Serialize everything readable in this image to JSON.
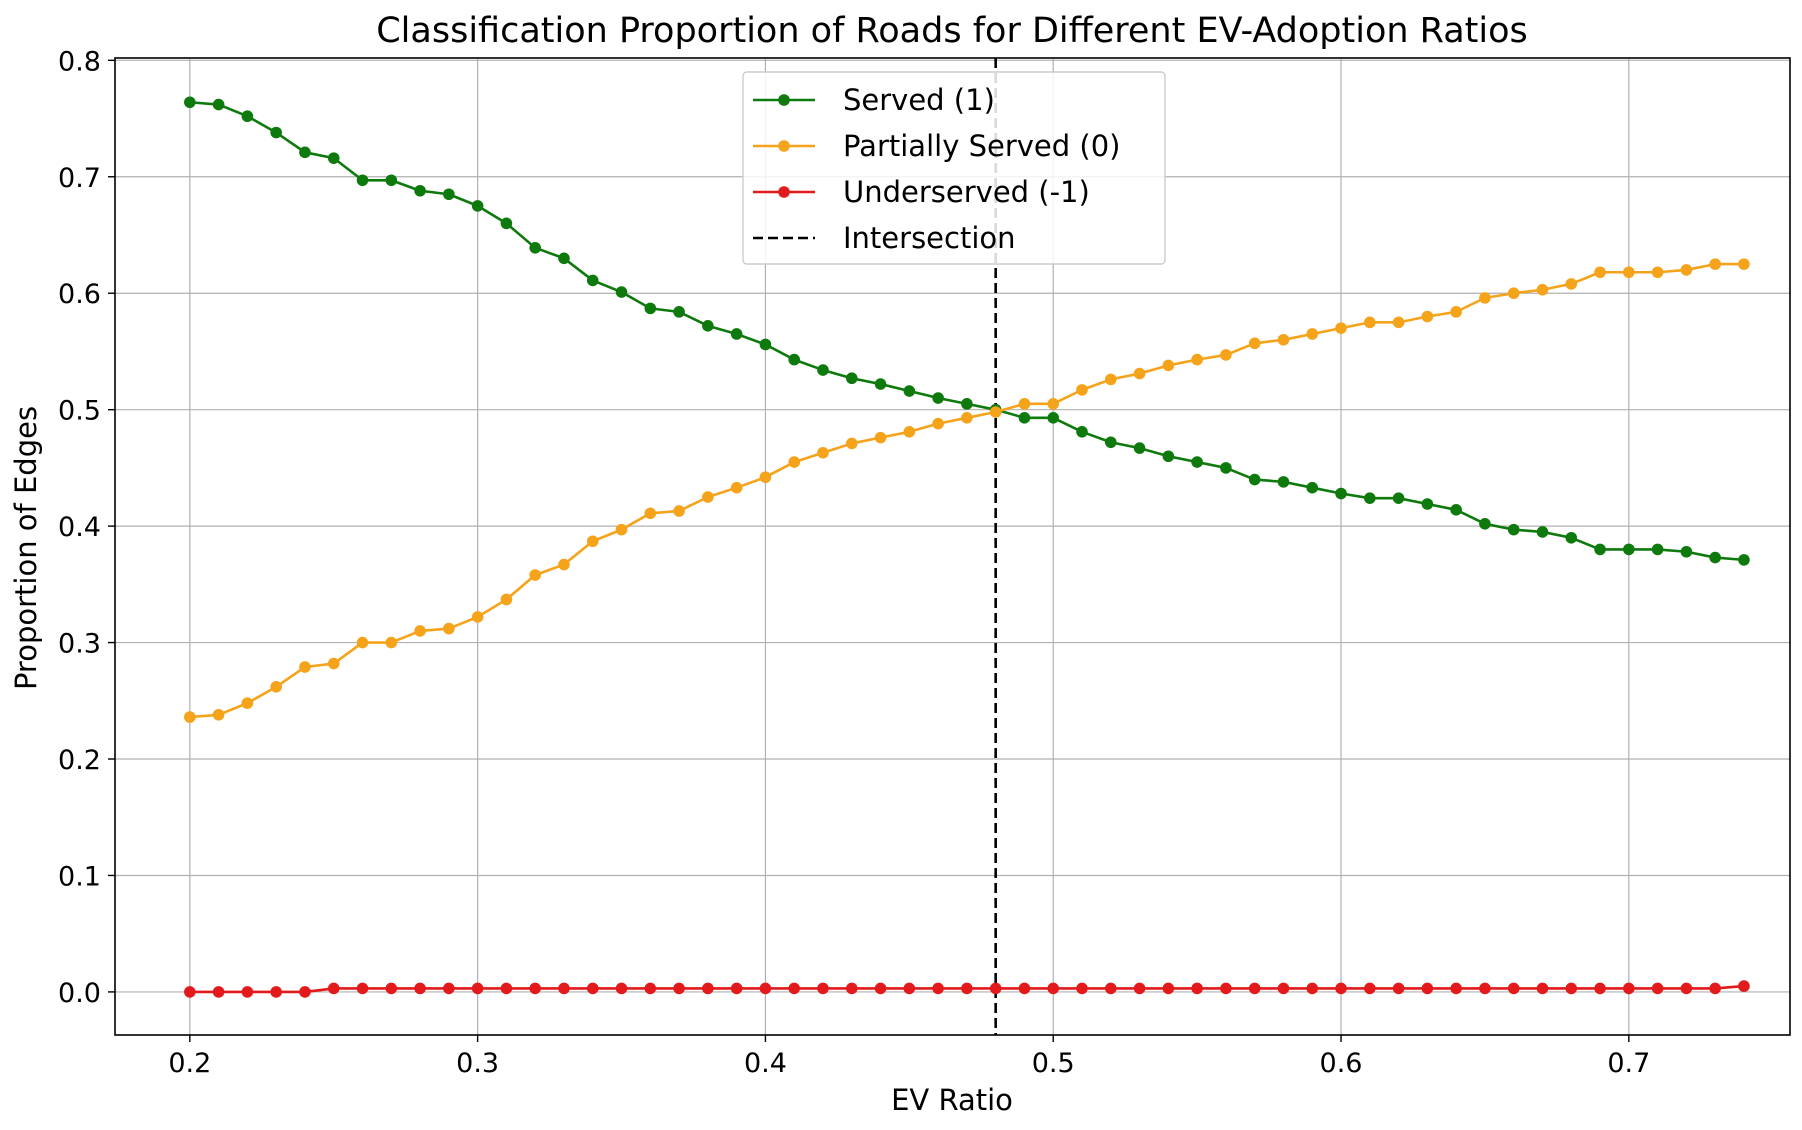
{
  "chart_data": {
    "type": "line",
    "title": "Classification Proportion of Roads for Different EV-Adoption Ratios",
    "xlabel": "EV Ratio",
    "ylabel": "Proportion of Edges",
    "xlim": [
      0.174,
      0.756
    ],
    "ylim": [
      -0.037,
      0.802
    ],
    "xticks": [
      {
        "value": 0.2,
        "label": "0.2"
      },
      {
        "value": 0.3,
        "label": "0.3"
      },
      {
        "value": 0.4,
        "label": "0.4"
      },
      {
        "value": 0.5,
        "label": "0.5"
      },
      {
        "value": 0.6,
        "label": "0.6"
      },
      {
        "value": 0.7,
        "label": "0.7"
      }
    ],
    "yticks": [
      {
        "value": 0.0,
        "label": "0.0"
      },
      {
        "value": 0.1,
        "label": "0.1"
      },
      {
        "value": 0.2,
        "label": "0.2"
      },
      {
        "value": 0.3,
        "label": "0.3"
      },
      {
        "value": 0.4,
        "label": "0.4"
      },
      {
        "value": 0.5,
        "label": "0.5"
      },
      {
        "value": 0.6,
        "label": "0.6"
      },
      {
        "value": 0.7,
        "label": "0.7"
      },
      {
        "value": 0.8,
        "label": "0.8"
      }
    ],
    "grid": true,
    "legend_position": "top-center",
    "x": [
      0.2,
      0.21,
      0.22,
      0.23,
      0.24,
      0.25,
      0.26,
      0.27,
      0.28,
      0.29,
      0.3,
      0.31,
      0.32,
      0.33,
      0.34,
      0.35,
      0.36,
      0.37,
      0.38,
      0.39,
      0.4,
      0.41,
      0.42,
      0.43,
      0.44,
      0.45,
      0.46,
      0.47,
      0.48,
      0.49,
      0.5,
      0.51,
      0.52,
      0.53,
      0.54,
      0.55,
      0.56,
      0.57,
      0.58,
      0.59,
      0.6,
      0.61,
      0.62,
      0.63,
      0.64,
      0.65,
      0.66,
      0.67,
      0.68,
      0.69,
      0.7,
      0.71,
      0.72,
      0.73,
      0.74
    ],
    "series": [
      {
        "name": "Served (1)",
        "color": "#0e7a0d",
        "values": [
          0.764,
          0.762,
          0.752,
          0.738,
          0.721,
          0.716,
          0.697,
          0.697,
          0.688,
          0.685,
          0.675,
          0.66,
          0.639,
          0.63,
          0.611,
          0.601,
          0.587,
          0.584,
          0.572,
          0.565,
          0.556,
          0.543,
          0.534,
          0.527,
          0.522,
          0.516,
          0.51,
          0.505,
          0.5,
          0.493,
          0.493,
          0.481,
          0.472,
          0.467,
          0.46,
          0.455,
          0.45,
          0.44,
          0.438,
          0.433,
          0.428,
          0.424,
          0.424,
          0.419,
          0.414,
          0.402,
          0.397,
          0.395,
          0.39,
          0.38,
          0.38,
          0.38,
          0.378,
          0.373,
          0.371
        ]
      },
      {
        "name": "Partially Served (0)",
        "color": "#f5a31a",
        "values": [
          0.236,
          0.238,
          0.248,
          0.262,
          0.279,
          0.282,
          0.3,
          0.3,
          0.31,
          0.312,
          0.322,
          0.337,
          0.358,
          0.367,
          0.387,
          0.397,
          0.411,
          0.413,
          0.425,
          0.433,
          0.442,
          0.455,
          0.463,
          0.471,
          0.476,
          0.481,
          0.488,
          0.493,
          0.498,
          0.505,
          0.505,
          0.517,
          0.526,
          0.531,
          0.538,
          0.543,
          0.547,
          0.557,
          0.56,
          0.565,
          0.57,
          0.575,
          0.575,
          0.58,
          0.584,
          0.596,
          0.6,
          0.603,
          0.608,
          0.618,
          0.618,
          0.618,
          0.62,
          0.625,
          0.625
        ]
      },
      {
        "name": "Underserved (-1)",
        "color": "#e31a1c",
        "values": [
          0.0,
          0.0,
          0.0,
          0.0,
          0.0,
          0.003,
          0.003,
          0.003,
          0.003,
          0.003,
          0.003,
          0.003,
          0.003,
          0.003,
          0.003,
          0.003,
          0.003,
          0.003,
          0.003,
          0.003,
          0.003,
          0.003,
          0.003,
          0.003,
          0.003,
          0.003,
          0.003,
          0.003,
          0.003,
          0.003,
          0.003,
          0.003,
          0.003,
          0.003,
          0.003,
          0.003,
          0.003,
          0.003,
          0.003,
          0.003,
          0.003,
          0.003,
          0.003,
          0.003,
          0.003,
          0.003,
          0.003,
          0.003,
          0.003,
          0.003,
          0.003,
          0.003,
          0.003,
          0.003,
          0.005
        ]
      }
    ],
    "intersection": {
      "name": "Intersection",
      "x": 0.48,
      "color": "#000000"
    }
  }
}
